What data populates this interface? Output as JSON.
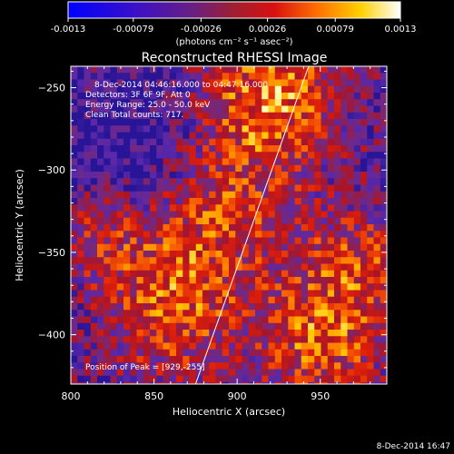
{
  "colorbar": {
    "ticks": [
      "-0.0013",
      "-0.00079",
      "-0.00026",
      "0.00026",
      "0.00079",
      "0.0013"
    ],
    "tick_values": [
      -0.0013,
      -0.00079,
      -0.00026,
      0.00026,
      0.00079,
      0.0013
    ],
    "range": [
      -0.0013,
      0.0013
    ],
    "unit_label": "(photons cm⁻² s⁻¹ asec⁻²)",
    "colors": [
      "#0000ff",
      "#3a10c8",
      "#6a1f80",
      "#9a1f30",
      "#c01010",
      "#e84000",
      "#ff8000",
      "#ffc800",
      "#ffff80",
      "#ffffff"
    ]
  },
  "chart_data": {
    "type": "heatmap",
    "title": "Reconstructed RHESSI Image",
    "xlabel": "Heliocentric X (arcsec)",
    "ylabel": "Heliocentric Y (arcsec)",
    "xlim": [
      800,
      990
    ],
    "ylim": [
      -430,
      -237
    ],
    "x_ticks": [
      800,
      850,
      900,
      950
    ],
    "y_ticks": [
      -250,
      -300,
      -350,
      -400
    ],
    "x_tick_labels": [
      "800",
      "850",
      "900",
      "950"
    ],
    "y_tick_labels": [
      "−250",
      "−300",
      "−350",
      "−400"
    ],
    "limb_line": [
      [
        875,
        -430
      ],
      [
        943,
        -237
      ]
    ],
    "peak": {
      "x": 929,
      "y": -255
    },
    "info_lines": [
      "8-Dec-2014 04:46:16.000 to 04:47:16.000",
      "Detectors: 3F 6F 9F, Att 0",
      "Energy Range: 25.0 - 50.0 keV",
      "Clean     Total counts: 717."
    ],
    "peak_label": "Position of Peak = [929,-255]"
  },
  "footer_date": "8-Dec-2014 16:47"
}
